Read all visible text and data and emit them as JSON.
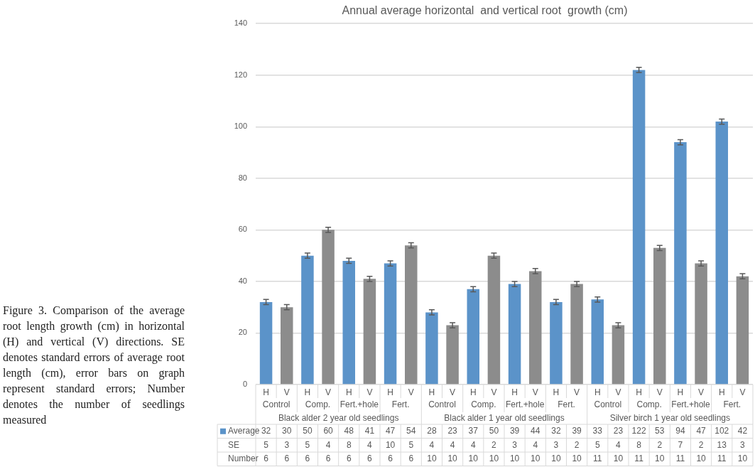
{
  "chart_data": {
    "type": "bar",
    "title": "Annual average horizontal  and vertical root  growth (cm)",
    "categories": [
      "H",
      "V",
      "H",
      "V",
      "H",
      "V",
      "H",
      "V",
      "H",
      "V",
      "H",
      "V",
      "H",
      "V",
      "H",
      "V",
      "H",
      "V",
      "H",
      "V",
      "H",
      "V",
      "H",
      "V"
    ],
    "series": [
      {
        "name": "Average",
        "color": "#5b93c9",
        "colors": [
          "#5b93c9",
          "#8c8c8c",
          "#5b93c9",
          "#8c8c8c",
          "#5b93c9",
          "#8c8c8c",
          "#5b93c9",
          "#8c8c8c",
          "#5b93c9",
          "#8c8c8c",
          "#5b93c9",
          "#8c8c8c",
          "#5b93c9",
          "#8c8c8c",
          "#5b93c9",
          "#8c8c8c",
          "#5b93c9",
          "#8c8c8c",
          "#5b93c9",
          "#8c8c8c",
          "#5b93c9",
          "#8c8c8c",
          "#5b93c9",
          "#8c8c8c"
        ],
        "values": [
          32,
          30,
          50,
          60,
          48,
          41,
          47,
          54,
          28,
          23,
          37,
          50,
          39,
          44,
          32,
          39,
          33,
          23,
          122,
          53,
          94,
          47,
          102,
          42
        ],
        "errors": [
          1,
          1,
          1,
          1,
          1,
          1,
          1,
          1,
          1,
          1,
          1,
          1,
          1,
          1,
          1,
          1,
          1,
          1,
          1,
          1,
          1,
          1,
          1,
          1
        ]
      }
    ],
    "ylim": [
      0,
      140
    ],
    "yticks": [
      0,
      20,
      40,
      60,
      80,
      100,
      120,
      140
    ],
    "grid": "y",
    "legend": "bottom",
    "data_labels": true,
    "annotations": [
      "Figure 3. Comparison of the average root length growth (cm) in horizontal (H) and vertical (V) directions. SE denotes standard errors of average root length (cm), error bars on graph represent standard errors; Number denotes the number of seedlings measured",
      "Control",
      "Comp.",
      "Fert.+hole",
      "Fert.",
      "Control",
      "Comp.",
      "Fert.+hole",
      "Fert.",
      "Control",
      "Comp.",
      "Fert.+hole",
      "Fert.",
      "Black alder 2 year old seedlings",
      "Black alder 1 year old seedlings",
      "Silver birch 1 year old seedlings",
      "SE",
      "5",
      "3",
      "5",
      "4",
      "8",
      "4",
      "10",
      "5",
      "4",
      "4",
      "4",
      "2",
      "3",
      "4",
      "3",
      "2",
      "5",
      "4",
      "8",
      "2",
      "7",
      "2",
      "13",
      "3",
      "Number",
      "6",
      "6",
      "6",
      "6",
      "6",
      "6",
      "6",
      "6",
      "10",
      "10",
      "10",
      "10",
      "10",
      "10",
      "10",
      "10",
      "11",
      "10",
      "11",
      "10",
      "11",
      "10",
      "11",
      "10"
    ]
  }
}
